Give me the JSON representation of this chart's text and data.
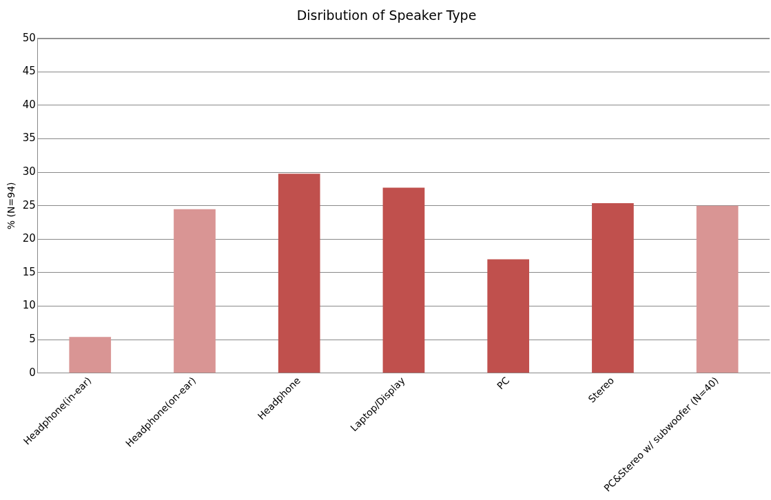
{
  "chart_data": {
    "type": "bar",
    "title": "Disribution of Speaker Type",
    "ylabel": "% (N=94)",
    "categories": [
      "Headphone(in-ear)",
      "Headphone(on-ear)",
      "Headphone",
      "Laptop/Display",
      "PC",
      "Stereo",
      "PC&Stereo w/ subwoofer (N=40)"
    ],
    "values": [
      5.4,
      24.5,
      29.8,
      27.7,
      17.0,
      25.4,
      25.0
    ],
    "colors": [
      "#d99594",
      "#d99594",
      "#c0504d",
      "#c0504d",
      "#c0504d",
      "#c0504d",
      "#d99594"
    ],
    "ylim": [
      0,
      50
    ],
    "yticks": [
      0,
      5,
      10,
      15,
      20,
      25,
      30,
      35,
      40,
      45,
      50
    ],
    "grid": "y",
    "legend": false
  }
}
